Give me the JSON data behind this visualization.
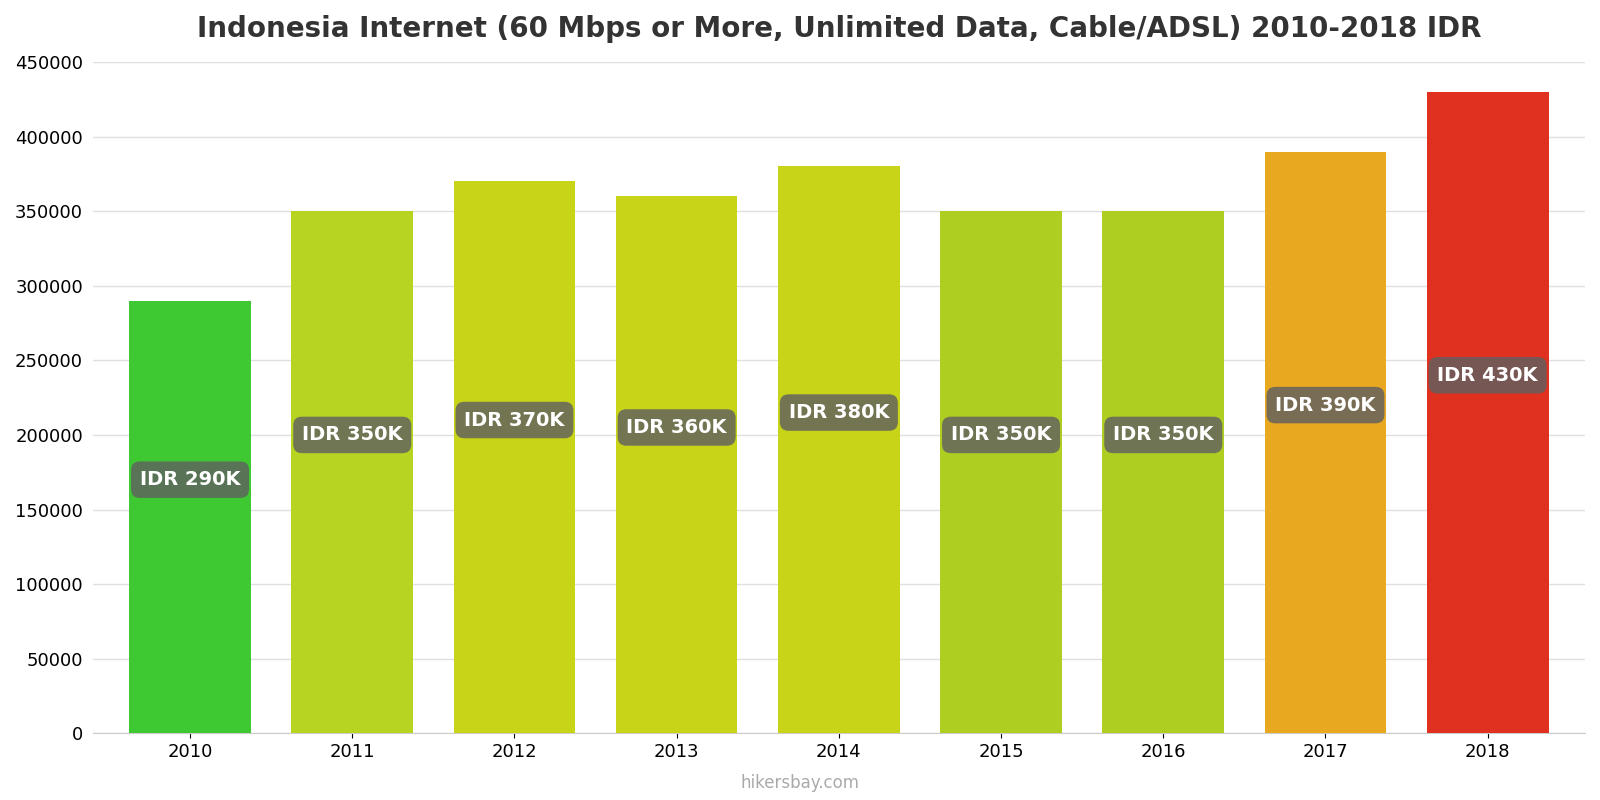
{
  "title": "Indonesia Internet (60 Mbps or More, Unlimited Data, Cable/ADSL) 2010-2018 IDR",
  "years": [
    2010,
    2011,
    2012,
    2013,
    2014,
    2015,
    2016,
    2017,
    2018
  ],
  "values": [
    290000,
    350000,
    370000,
    360000,
    380000,
    350000,
    350000,
    390000,
    430000
  ],
  "labels": [
    "IDR 290K",
    "IDR 350K",
    "IDR 370K",
    "IDR 360K",
    "IDR 380K",
    "IDR 350K",
    "IDR 350K",
    "IDR 390K",
    "IDR 430K"
  ],
  "bar_colors": [
    "#3ec832",
    "#b8d422",
    "#c8d418",
    "#c8d418",
    "#c8d418",
    "#aece22",
    "#aece22",
    "#e8a820",
    "#e03020"
  ],
  "label_y_values": [
    170000,
    200000,
    210000,
    205000,
    215000,
    200000,
    200000,
    220000,
    240000
  ],
  "ylim": [
    0,
    450000
  ],
  "yticks": [
    0,
    50000,
    100000,
    150000,
    200000,
    250000,
    300000,
    350000,
    400000,
    450000
  ],
  "label_bg_color": "#606060",
  "label_text_color": "#ffffff",
  "label_fontsize": 14,
  "title_fontsize": 20,
  "tick_fontsize": 13,
  "watermark": "hikersbay.com",
  "bg_color": "#ffffff",
  "grid_color": "#e0e0e0",
  "bar_width": 0.75
}
